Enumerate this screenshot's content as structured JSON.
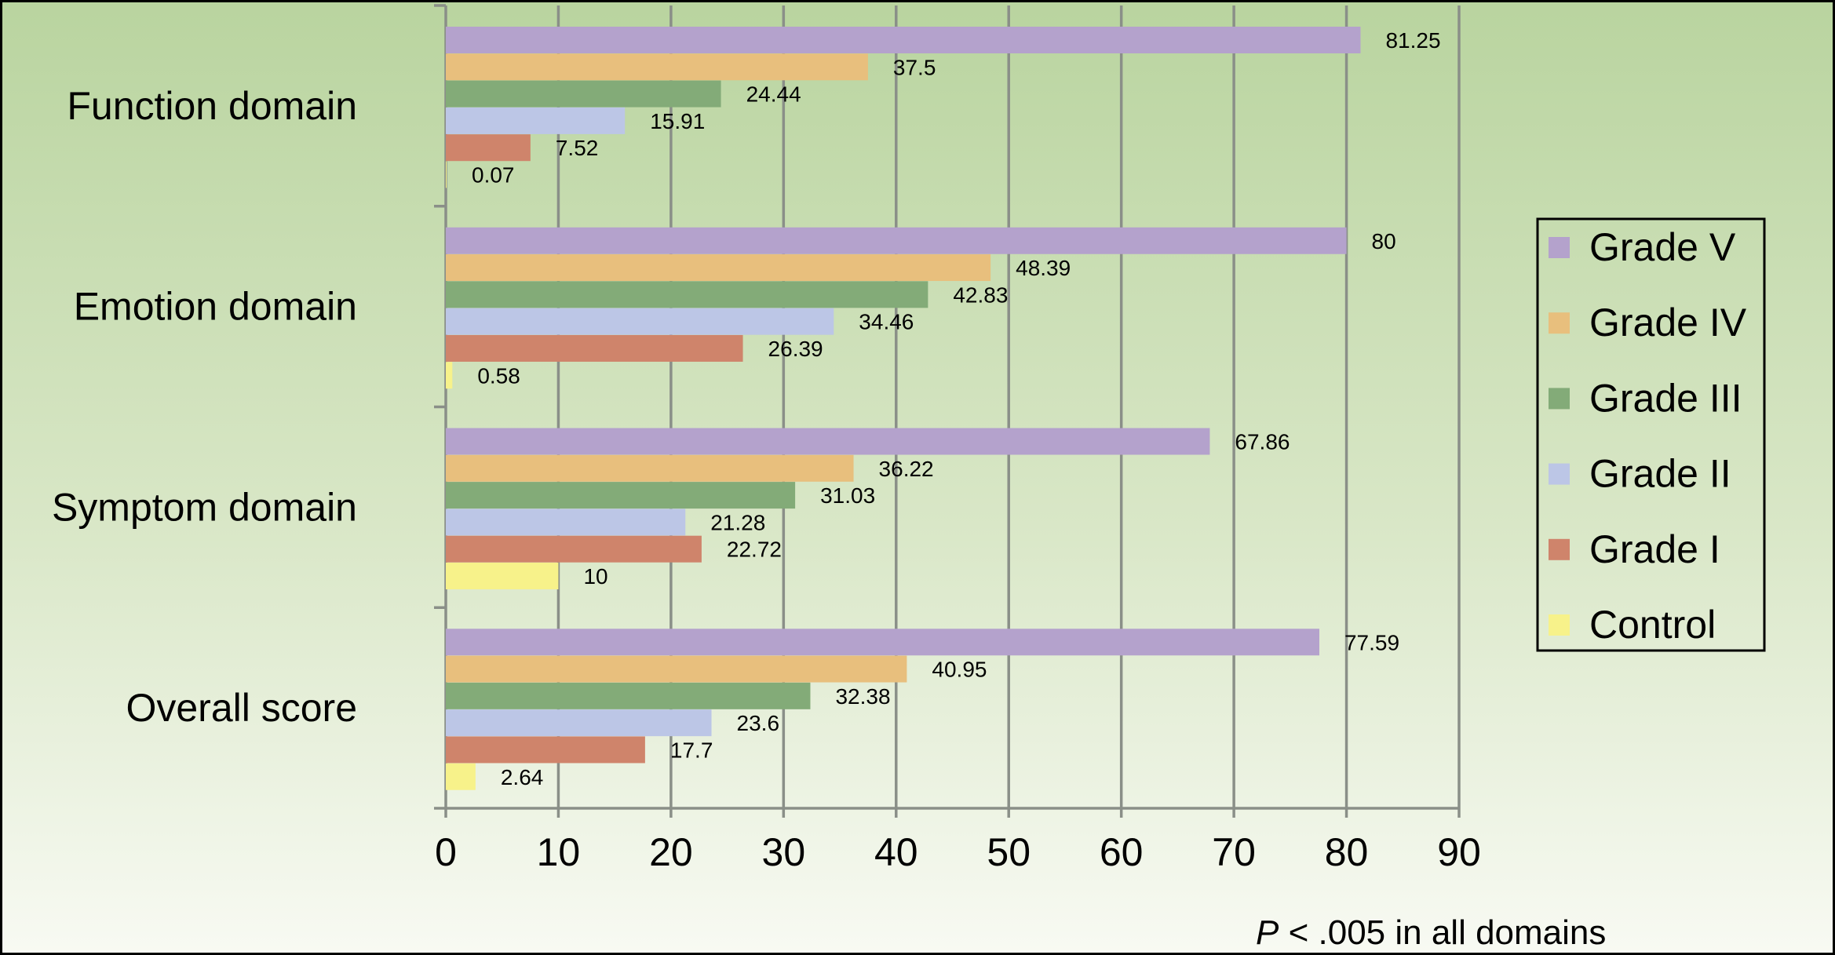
{
  "chart_data": {
    "type": "bar",
    "orientation": "horizontal",
    "title": "",
    "xlabel": "",
    "ylabel": "",
    "xlim": [
      0,
      90
    ],
    "x_ticks": [
      "0",
      "10",
      "20",
      "30",
      "40",
      "50",
      "60",
      "70",
      "80",
      "90"
    ],
    "grid": true,
    "legend_position": "right",
    "categories": [
      "Function domain",
      "Emotion domain",
      "Symptom domain",
      "Overall score"
    ],
    "series": [
      {
        "name": "Grade V",
        "color": "#b4a2cc",
        "values": [
          81.25,
          80,
          67.86,
          77.59
        ],
        "labels": [
          "81.25",
          "80",
          "67.86",
          "77.59"
        ]
      },
      {
        "name": "Grade IV",
        "color": "#e8bf7d",
        "values": [
          37.5,
          48.39,
          36.22,
          40.95
        ],
        "labels": [
          "37.5",
          "48.39",
          "36.22",
          "40.95"
        ]
      },
      {
        "name": "Grade III",
        "color": "#83ab78",
        "values": [
          24.44,
          42.83,
          31.03,
          32.38
        ],
        "labels": [
          "24.44",
          "42.83",
          "31.03",
          "32.38"
        ]
      },
      {
        "name": "Grade II",
        "color": "#bcc6e6",
        "values": [
          15.91,
          34.46,
          21.28,
          23.6
        ],
        "labels": [
          "15.91",
          "34.46",
          "21.28",
          "23.6"
        ]
      },
      {
        "name": "Grade I",
        "color": "#cf846b",
        "values": [
          7.52,
          26.39,
          22.72,
          17.7
        ],
        "labels": [
          "7.52",
          "26.39",
          "22.72",
          "17.7"
        ]
      },
      {
        "name": "Control",
        "color": "#f7f28a",
        "values": [
          0.07,
          0.58,
          10,
          2.64
        ],
        "labels": [
          "0.07",
          "0.58",
          "10",
          "2.64"
        ]
      }
    ],
    "annotation_italic": "P",
    "annotation_rest": " < .005 in all domains"
  }
}
